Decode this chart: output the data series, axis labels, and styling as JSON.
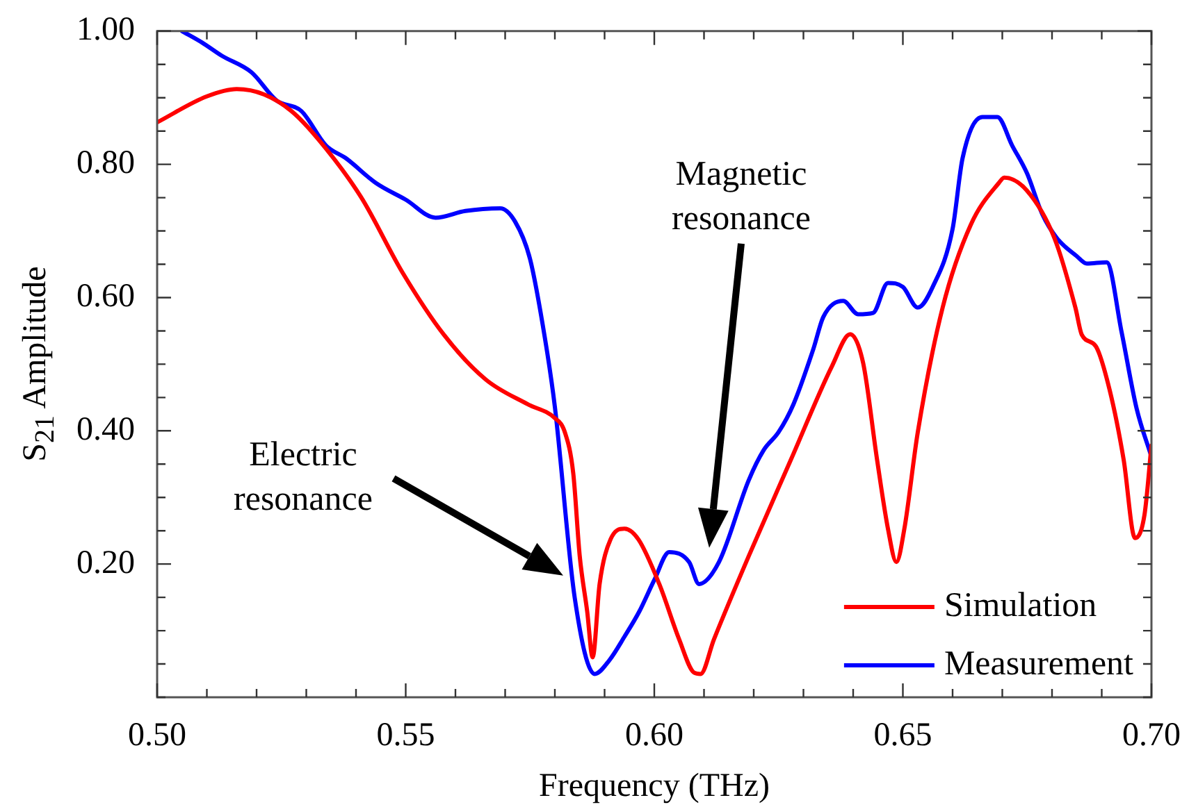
{
  "chart_data": {
    "type": "line",
    "xlabel": "Frequency (THz)",
    "ylabel": "S$_{21}$ Amplitude",
    "xlim": [
      0.5,
      0.7
    ],
    "ylim": [
      0,
      1
    ],
    "xticks": [
      {
        "value": 0.5,
        "label": "0.50"
      },
      {
        "value": 0.51,
        "label": null
      },
      {
        "value": 0.52,
        "label": null
      },
      {
        "value": 0.53,
        "label": null
      },
      {
        "value": 0.54,
        "label": null
      },
      {
        "value": 0.55,
        "label": "0.55"
      },
      {
        "value": 0.56,
        "label": null
      },
      {
        "value": 0.57,
        "label": null
      },
      {
        "value": 0.58,
        "label": null
      },
      {
        "value": 0.59,
        "label": null
      },
      {
        "value": 0.6,
        "label": "0.60"
      },
      {
        "value": 0.61,
        "label": null
      },
      {
        "value": 0.62,
        "label": null
      },
      {
        "value": 0.63,
        "label": null
      },
      {
        "value": 0.64,
        "label": null
      },
      {
        "value": 0.65,
        "label": "0.65"
      },
      {
        "value": 0.66,
        "label": null
      },
      {
        "value": 0.67,
        "label": null
      },
      {
        "value": 0.68,
        "label": null
      },
      {
        "value": 0.69,
        "label": null
      },
      {
        "value": 0.7,
        "label": "0.70"
      }
    ],
    "yticks": [
      {
        "value": 0,
        "label": null
      },
      {
        "value": 0.05,
        "label": null
      },
      {
        "value": 0.1,
        "label": null
      },
      {
        "value": 0.15,
        "label": null
      },
      {
        "value": 0.2,
        "label": "0.20"
      },
      {
        "value": 0.25,
        "label": null
      },
      {
        "value": 0.3,
        "label": null
      },
      {
        "value": 0.35,
        "label": null
      },
      {
        "value": 0.4,
        "label": "0.40"
      },
      {
        "value": 0.45,
        "label": null
      },
      {
        "value": 0.5,
        "label": null
      },
      {
        "value": 0.55,
        "label": null
      },
      {
        "value": 0.6,
        "label": "0.60"
      },
      {
        "value": 0.65,
        "label": null
      },
      {
        "value": 0.7,
        "label": null
      },
      {
        "value": 0.75,
        "label": null
      },
      {
        "value": 0.8,
        "label": "0.80"
      },
      {
        "value": 0.85,
        "label": null
      },
      {
        "value": 0.9,
        "label": null
      },
      {
        "value": 0.95,
        "label": null
      },
      {
        "value": 1,
        "label": "1.00"
      }
    ],
    "legend": "bottom right",
    "marker": "none",
    "line_style": "solid",
    "annotations": [
      "Electric resonance",
      "Magnetic resonance"
    ],
    "series": [
      {
        "name": "Simulation",
        "color": "#ff0000",
        "x": [
          0.5,
          0.51,
          0.516,
          0.5215,
          0.527,
          0.5326,
          0.541,
          0.5494,
          0.5577,
          0.5661,
          0.5745,
          0.58,
          0.582,
          0.5837,
          0.585,
          0.5865,
          0.5876,
          0.589,
          0.5912,
          0.594,
          0.5968,
          0.601,
          0.605,
          0.608,
          0.6093,
          0.612,
          0.619,
          0.6275,
          0.6358,
          0.6394,
          0.642,
          0.6448,
          0.647,
          0.6487,
          0.6503,
          0.653,
          0.658,
          0.6637,
          0.6693,
          0.6704,
          0.6749,
          0.6805,
          0.6847,
          0.686,
          0.6888,
          0.6916,
          0.6944,
          0.6967,
          0.6986,
          0.7
        ],
        "values": [
          0.863,
          0.902,
          0.913,
          0.905,
          0.88,
          0.836,
          0.751,
          0.637,
          0.544,
          0.477,
          0.44,
          0.419,
          0.398,
          0.336,
          0.212,
          0.129,
          0.06,
          0.17,
          0.237,
          0.253,
          0.237,
          0.17,
          0.087,
          0.037,
          0.035,
          0.087,
          0.212,
          0.357,
          0.498,
          0.545,
          0.502,
          0.357,
          0.253,
          0.203,
          0.253,
          0.398,
          0.585,
          0.71,
          0.772,
          0.78,
          0.761,
          0.689,
          0.585,
          0.544,
          0.527,
          0.461,
          0.357,
          0.239,
          0.274,
          0.378
        ]
      },
      {
        "name": "Measurement",
        "color": "#0000ff",
        "x": [
          0.505,
          0.509,
          0.513,
          0.519,
          0.524,
          0.529,
          0.534,
          0.538,
          0.544,
          0.55,
          0.556,
          0.562,
          0.569,
          0.572,
          0.575,
          0.578,
          0.58,
          0.584,
          0.588,
          0.591,
          0.594,
          0.597,
          0.6,
          0.603,
          0.607,
          0.609,
          0.613,
          0.619,
          0.622,
          0.625,
          0.628,
          0.632,
          0.634,
          0.638,
          0.641,
          0.644,
          0.647,
          0.65,
          0.653,
          0.656,
          0.66,
          0.662,
          0.666,
          0.669,
          0.672,
          0.675,
          0.678,
          0.681,
          0.685,
          0.687,
          0.691,
          0.694,
          0.697,
          0.7
        ],
        "values": [
          1.0,
          0.983,
          0.963,
          0.938,
          0.896,
          0.88,
          0.828,
          0.809,
          0.772,
          0.747,
          0.72,
          0.73,
          0.734,
          0.714,
          0.658,
          0.539,
          0.436,
          0.149,
          0.035,
          0.056,
          0.091,
          0.129,
          0.176,
          0.218,
          0.203,
          0.17,
          0.203,
          0.326,
          0.371,
          0.398,
          0.44,
          0.523,
          0.571,
          0.595,
          0.575,
          0.577,
          0.622,
          0.616,
          0.585,
          0.616,
          0.703,
          0.809,
          0.871,
          0.871,
          0.828,
          0.786,
          0.726,
          0.689,
          0.662,
          0.651,
          0.653,
          0.548,
          0.434,
          0.361
        ]
      }
    ]
  }
}
